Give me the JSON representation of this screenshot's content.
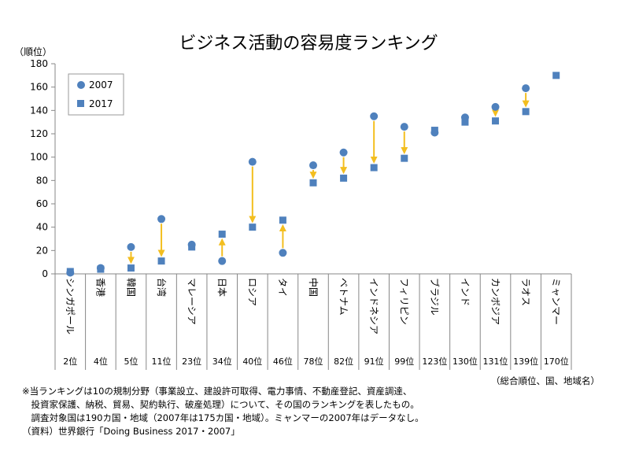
{
  "chart_data": {
    "type": "scatter",
    "title": "ビジネス活動の容易度ランキング",
    "ylabel": "（順位）",
    "ylim": [
      0,
      180
    ],
    "yticks": [
      0,
      20,
      40,
      60,
      80,
      100,
      120,
      140,
      160,
      180
    ],
    "grid": false,
    "legend_position": "top-left",
    "categories": [
      "シンガポール",
      "香港",
      "韓国",
      "台湾",
      "マレーシア",
      "日本",
      "ロシア",
      "タイ",
      "中国",
      "ベトナム",
      "インドネシア",
      "フィリピン",
      "ブラジル",
      "インド",
      "カンボジア",
      "ラオス",
      "ミャンマー"
    ],
    "rank_labels": [
      "2位",
      "4位",
      "5位",
      "11位",
      "23位",
      "34位",
      "40位",
      "46位",
      "78位",
      "82位",
      "91位",
      "99位",
      "123位",
      "130位",
      "131位",
      "139位",
      "170位"
    ],
    "series": [
      {
        "name": "2007",
        "marker": "circle",
        "values": [
          1,
          5,
          23,
          47,
          25,
          11,
          96,
          18,
          93,
          104,
          135,
          126,
          121,
          134,
          143,
          159,
          null
        ]
      },
      {
        "name": "2017",
        "marker": "square",
        "values": [
          2,
          4,
          5,
          11,
          23,
          34,
          40,
          46,
          78,
          82,
          91,
          99,
          123,
          130,
          131,
          139,
          170
        ]
      }
    ],
    "colors": {
      "marker": "#4f81bd",
      "arrow": "#f3be1f",
      "axis": "#878787"
    }
  },
  "summary_label": "（総合順位、国、地域名）",
  "footnotes": [
    "※当ランキングは10の規制分野（事業設立、建設許可取得、電力事情、不動産登記、資産調達、",
    "　投資家保護、納税、貿易、契約執行、破産処理）について、その国のランキングを表したもの。",
    "　調査対象国は190カ国・地域（2007年は175カ国・地域）。ミャンマーの2007年はデータなし。",
    "（資料）世界銀行「Doing Business 2017・2007」"
  ]
}
